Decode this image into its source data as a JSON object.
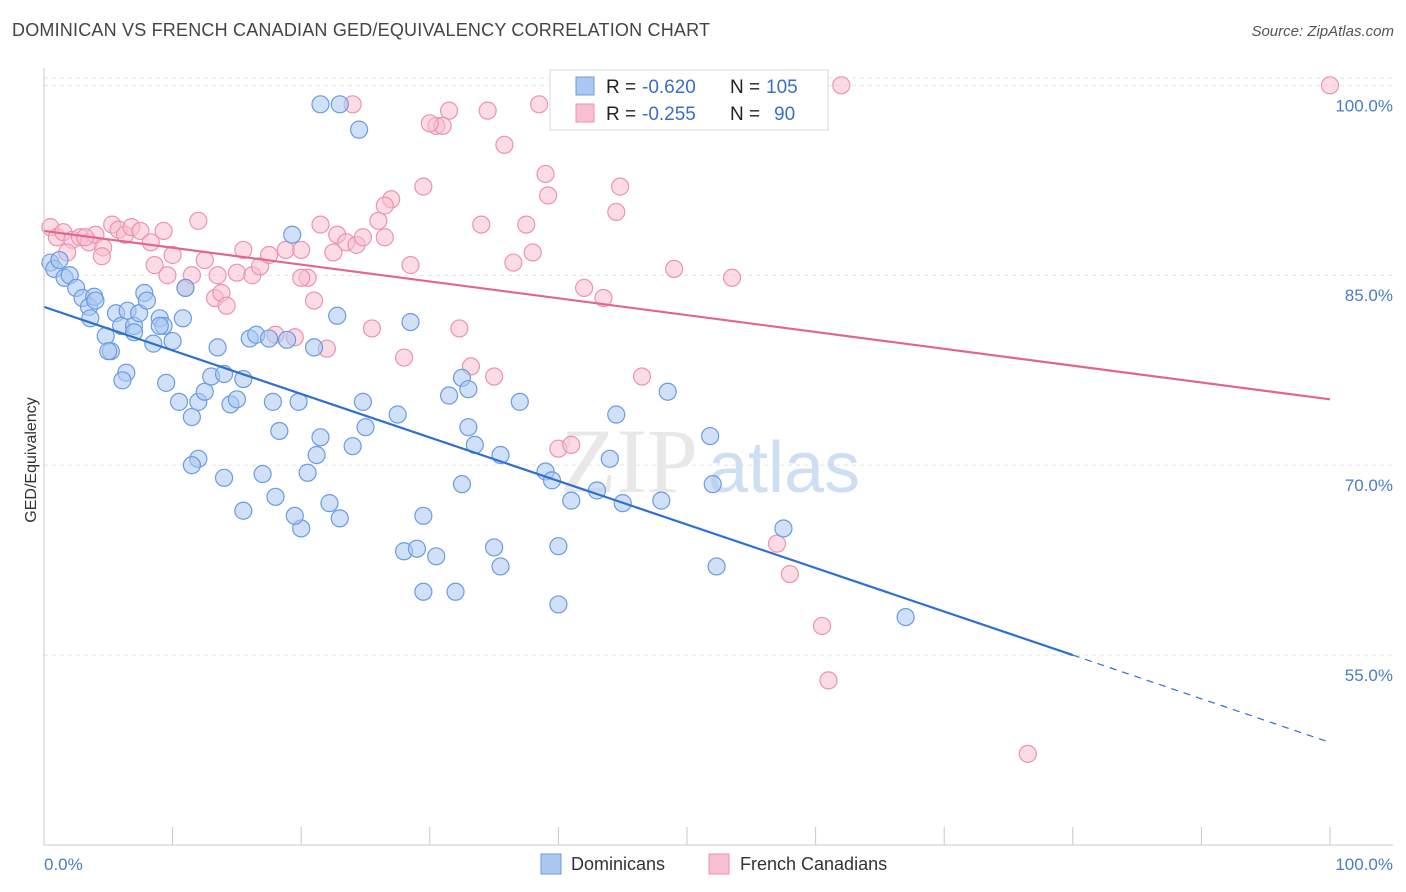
{
  "header": {
    "title": "DOMINICAN VS FRENCH CANADIAN GED/EQUIVALENCY CORRELATION CHART",
    "source": "Source: ZipAtlas.com"
  },
  "watermark": {
    "part1": "ZIP",
    "part2": "atlas"
  },
  "legend": {
    "rows": [
      {
        "r_label": "R =",
        "r_value": "-0.620",
        "n_label": "N =",
        "n_value": "105"
      },
      {
        "r_label": "R =",
        "r_value": "-0.255",
        "n_label": "N =",
        "n_value": "90"
      }
    ]
  },
  "bottom_legend": [
    "Dominicans",
    "French Canadians"
  ],
  "colors": {
    "dominicans_fill": "#aac8f0",
    "dominicans_stroke": "#6b9be0",
    "dominicans_line": "#2f6fcf",
    "french_fill": "#f7bfd0",
    "french_stroke": "#ec93b0",
    "french_line": "#e0668e",
    "tick_text": "#4a7cc7",
    "grid": "#e2e2e2"
  },
  "chart_data": {
    "type": "scatter",
    "ylabel": "GED/Equivalency",
    "xlim": [
      0,
      100
    ],
    "ylim": [
      40,
      102
    ],
    "x_ticks": [
      "0.0%",
      "100.0%"
    ],
    "y_ticks": [
      {
        "value": 100,
        "label": "100.0%"
      },
      {
        "value": 85,
        "label": "85.0%"
      },
      {
        "value": 70,
        "label": "70.0%"
      },
      {
        "value": 55,
        "label": "55.0%"
      }
    ],
    "grid": true,
    "series": [
      {
        "name": "Dominicans",
        "trend": {
          "x0": 0,
          "y0": 82.5,
          "x1": 80,
          "y1": 55.0,
          "dash_to_x": 100,
          "dash_to_y": 48.1
        },
        "points": [
          [
            0.5,
            86.0
          ],
          [
            0.8,
            85.5
          ],
          [
            1.2,
            86.2
          ],
          [
            1.6,
            84.8
          ],
          [
            2.0,
            85.0
          ],
          [
            2.5,
            84.0
          ],
          [
            3.0,
            83.2
          ],
          [
            3.5,
            82.5
          ],
          [
            3.9,
            83.3
          ],
          [
            4.0,
            83.0
          ],
          [
            3.6,
            81.6
          ],
          [
            4.8,
            80.2
          ],
          [
            5.2,
            79.0
          ],
          [
            5.6,
            82.0
          ],
          [
            6.0,
            81.0
          ],
          [
            6.5,
            82.2
          ],
          [
            7.0,
            81.0
          ],
          [
            7.4,
            82.0
          ],
          [
            7.8,
            83.6
          ],
          [
            8.0,
            83.0
          ],
          [
            8.5,
            79.6
          ],
          [
            9.0,
            81.6
          ],
          [
            9.3,
            81.0
          ],
          [
            10.0,
            79.8
          ],
          [
            10.8,
            81.6
          ],
          [
            5.0,
            79.0
          ],
          [
            6.4,
            77.3
          ],
          [
            6.1,
            76.7
          ],
          [
            9.5,
            76.5
          ],
          [
            10.5,
            75.0
          ],
          [
            11.5,
            73.8
          ],
          [
            12.0,
            75.0
          ],
          [
            12.5,
            75.8
          ],
          [
            13.0,
            77.0
          ],
          [
            13.5,
            79.3
          ],
          [
            14.0,
            77.2
          ],
          [
            14.5,
            74.8
          ],
          [
            15.0,
            75.2
          ],
          [
            15.5,
            76.8
          ],
          [
            16.0,
            80.0
          ],
          [
            16.5,
            80.3
          ],
          [
            17.5,
            80.0
          ],
          [
            17.8,
            75.0
          ],
          [
            18.3,
            72.7
          ],
          [
            18.9,
            79.9
          ],
          [
            19.3,
            88.2
          ],
          [
            19.8,
            75.0
          ],
          [
            20.5,
            69.4
          ],
          [
            21.2,
            70.8
          ],
          [
            21.5,
            72.2
          ],
          [
            22.2,
            67.0
          ],
          [
            23.0,
            65.8
          ],
          [
            21.0,
            79.3
          ],
          [
            22.8,
            81.8
          ],
          [
            24.0,
            71.5
          ],
          [
            24.8,
            75.0
          ],
          [
            25.0,
            73.0
          ],
          [
            27.5,
            74.0
          ],
          [
            28.5,
            81.3
          ],
          [
            29.5,
            66.0
          ],
          [
            28.0,
            63.2
          ],
          [
            29.0,
            63.4
          ],
          [
            29.5,
            60.0
          ],
          [
            30.5,
            62.8
          ],
          [
            32.0,
            60.0
          ],
          [
            31.5,
            75.5
          ],
          [
            32.5,
            76.9
          ],
          [
            33.0,
            76.0
          ],
          [
            32.5,
            68.5
          ],
          [
            33.0,
            73.0
          ],
          [
            33.5,
            71.6
          ],
          [
            35.0,
            63.5
          ],
          [
            35.5,
            62.0
          ],
          [
            35.5,
            70.8
          ],
          [
            37.0,
            75.0
          ],
          [
            39.0,
            69.5
          ],
          [
            39.5,
            68.8
          ],
          [
            40.0,
            63.6
          ],
          [
            40.0,
            59.0
          ],
          [
            41.0,
            67.2
          ],
          [
            43.0,
            68.0
          ],
          [
            44.0,
            70.5
          ],
          [
            44.5,
            74.0
          ],
          [
            45.0,
            67.0
          ],
          [
            48.0,
            67.2
          ],
          [
            48.5,
            75.8
          ],
          [
            51.8,
            72.3
          ],
          [
            52.0,
            68.5
          ],
          [
            57.5,
            65.0
          ],
          [
            52.3,
            62.0
          ],
          [
            67.0,
            58.0
          ],
          [
            20.0,
            65.0
          ],
          [
            14.0,
            69.0
          ],
          [
            15.5,
            66.4
          ],
          [
            17.0,
            69.3
          ],
          [
            12.0,
            70.5
          ],
          [
            11.5,
            70.0
          ],
          [
            18.0,
            67.5
          ],
          [
            19.5,
            66.0
          ],
          [
            21.5,
            98.5
          ],
          [
            23.0,
            98.5
          ],
          [
            24.5,
            96.5
          ],
          [
            11.0,
            84.0
          ],
          [
            9.0,
            81.0
          ],
          [
            7.0,
            80.5
          ]
        ]
      },
      {
        "name": "French Canadians",
        "trend": {
          "x0": 0,
          "y0": 88.5,
          "x1": 100,
          "y1": 75.2
        },
        "points": [
          [
            0.5,
            88.8
          ],
          [
            1.0,
            88.0
          ],
          [
            1.5,
            88.4
          ],
          [
            2.2,
            87.8
          ],
          [
            2.8,
            88.0
          ],
          [
            3.5,
            87.6
          ],
          [
            4.0,
            88.2
          ],
          [
            4.6,
            87.2
          ],
          [
            5.3,
            89.0
          ],
          [
            5.8,
            88.6
          ],
          [
            6.3,
            88.2
          ],
          [
            6.8,
            88.8
          ],
          [
            7.5,
            88.5
          ],
          [
            8.3,
            87.6
          ],
          [
            9.3,
            88.5
          ],
          [
            10.0,
            86.6
          ],
          [
            8.6,
            85.8
          ],
          [
            9.6,
            85.0
          ],
          [
            11.0,
            84.0
          ],
          [
            11.5,
            85.0
          ],
          [
            12.0,
            89.3
          ],
          [
            12.5,
            86.2
          ],
          [
            13.3,
            83.2
          ],
          [
            13.8,
            83.6
          ],
          [
            14.2,
            82.6
          ],
          [
            15.0,
            85.2
          ],
          [
            15.5,
            87.0
          ],
          [
            16.2,
            85.0
          ],
          [
            16.8,
            85.7
          ],
          [
            17.5,
            86.6
          ],
          [
            18.0,
            80.3
          ],
          [
            18.8,
            87.0
          ],
          [
            19.5,
            80.1
          ],
          [
            20.0,
            87.0
          ],
          [
            20.5,
            84.8
          ],
          [
            21.0,
            83.0
          ],
          [
            21.5,
            89.0
          ],
          [
            22.0,
            79.2
          ],
          [
            22.5,
            86.8
          ],
          [
            22.8,
            88.2
          ],
          [
            23.5,
            87.6
          ],
          [
            24.3,
            87.4
          ],
          [
            24.8,
            88.0
          ],
          [
            25.5,
            80.8
          ],
          [
            26.0,
            89.3
          ],
          [
            26.5,
            88.0
          ],
          [
            27.0,
            91.0
          ],
          [
            28.0,
            78.5
          ],
          [
            28.5,
            85.8
          ],
          [
            29.5,
            92.0
          ],
          [
            30.5,
            96.8
          ],
          [
            31.5,
            98.0
          ],
          [
            32.3,
            80.8
          ],
          [
            33.2,
            77.8
          ],
          [
            34.0,
            89.0
          ],
          [
            35.0,
            77.0
          ],
          [
            35.8,
            95.3
          ],
          [
            36.5,
            86.0
          ],
          [
            37.5,
            89.0
          ],
          [
            38.0,
            86.8
          ],
          [
            38.5,
            98.5
          ],
          [
            39.0,
            93.0
          ],
          [
            39.2,
            91.3
          ],
          [
            40.0,
            71.3
          ],
          [
            41.0,
            71.6
          ],
          [
            42.0,
            84.0
          ],
          [
            43.5,
            83.2
          ],
          [
            44.5,
            90.0
          ],
          [
            44.8,
            92.0
          ],
          [
            46.5,
            77.0
          ],
          [
            47.0,
            100.0
          ],
          [
            49.0,
            85.5
          ],
          [
            53.5,
            84.8
          ],
          [
            57.0,
            63.8
          ],
          [
            58.0,
            61.4
          ],
          [
            60.5,
            57.3
          ],
          [
            61.0,
            53.0
          ],
          [
            62.0,
            100.0
          ],
          [
            76.5,
            47.2
          ],
          [
            20.0,
            84.8
          ],
          [
            13.5,
            85.0
          ],
          [
            4.5,
            86.5
          ],
          [
            1.8,
            86.8
          ],
          [
            3.2,
            88.0
          ],
          [
            26.5,
            90.5
          ],
          [
            24.0,
            98.5
          ],
          [
            31.0,
            96.8
          ],
          [
            34.5,
            98.0
          ],
          [
            30.0,
            97.0
          ],
          [
            100.0,
            100.0
          ]
        ]
      }
    ]
  }
}
